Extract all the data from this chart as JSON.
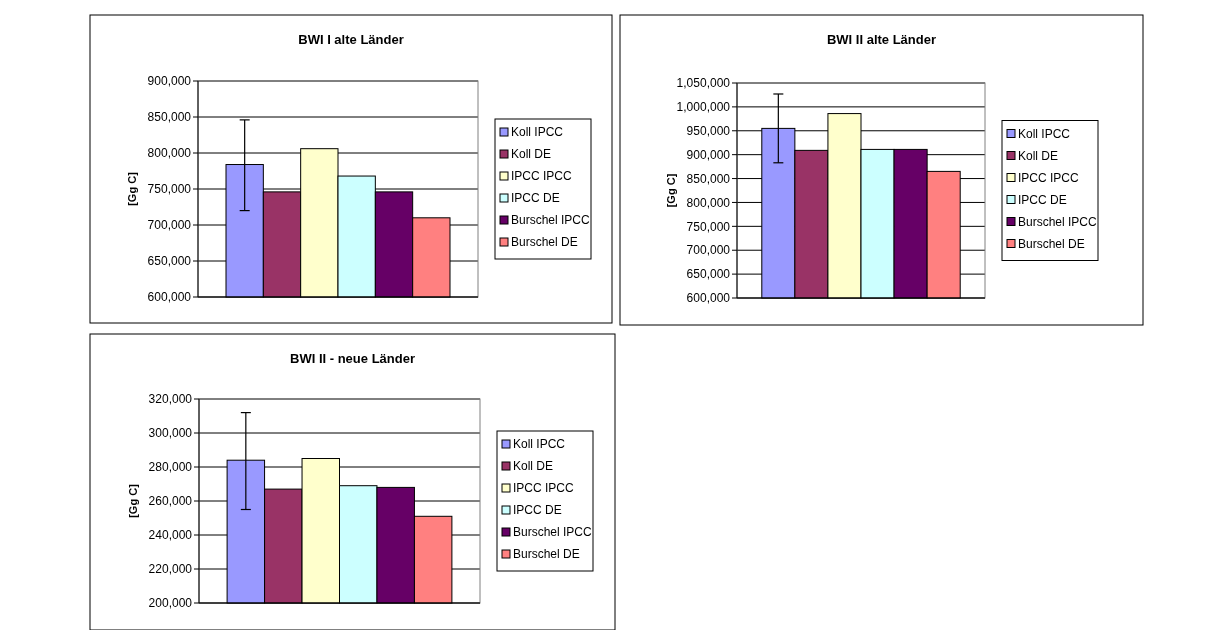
{
  "chart_data": [
    {
      "type": "bar",
      "title": "BWI I alte Länder",
      "ylabel": "[Gg C]",
      "categories": [
        null
      ],
      "ylim": [
        600000,
        900000
      ],
      "yticks": [
        {
          "value": 600000,
          "label": "600,000"
        },
        {
          "value": 650000,
          "label": "650,000"
        },
        {
          "value": 700000,
          "label": "700,000"
        },
        {
          "value": 750000,
          "label": "750,000"
        },
        {
          "value": 800000,
          "label": "800,000"
        },
        {
          "value": 850000,
          "label": "850,000"
        },
        {
          "value": 900000,
          "label": "900,000"
        }
      ],
      "grid": "y",
      "legend": "right",
      "series": [
        {
          "name": "Koll IPCC",
          "color": "#9999ff",
          "values": [
            784000
          ],
          "errors": [
            [
              720000,
              846000
            ]
          ]
        },
        {
          "name": "Koll DE",
          "color": "#993366",
          "values": [
            746000
          ]
        },
        {
          "name": "IPCC IPCC",
          "color": "#ffffcc",
          "values": [
            806000
          ]
        },
        {
          "name": "IPCC DE",
          "color": "#ccffff",
          "values": [
            768000
          ]
        },
        {
          "name": "Burschel IPCC",
          "color": "#660066",
          "values": [
            746000
          ]
        },
        {
          "name": "Burschel DE",
          "color": "#ff8080",
          "values": [
            710000
          ]
        }
      ]
    },
    {
      "type": "bar",
      "title": "BWI II alte Länder",
      "ylabel": "[Gg C]",
      "categories": [
        null
      ],
      "ylim": [
        600000,
        1050000
      ],
      "yticks": [
        {
          "value": 600000,
          "label": "600,000"
        },
        {
          "value": 650000,
          "label": "650,000"
        },
        {
          "value": 700000,
          "label": "700,000"
        },
        {
          "value": 750000,
          "label": "750,000"
        },
        {
          "value": 800000,
          "label": "800,000"
        },
        {
          "value": 850000,
          "label": "850,000"
        },
        {
          "value": 900000,
          "label": "900,000"
        },
        {
          "value": 950000,
          "label": "950,000"
        },
        {
          "value": 1000000,
          "label": "1,000,000"
        },
        {
          "value": 1050000,
          "label": "1,050,000"
        }
      ],
      "grid": "y",
      "legend": "right",
      "series": [
        {
          "name": "Koll IPCC",
          "color": "#9999ff",
          "values": [
            955000
          ],
          "errors": [
            [
              883000,
              1027000
            ]
          ]
        },
        {
          "name": "Koll DE",
          "color": "#993366",
          "values": [
            909000
          ]
        },
        {
          "name": "IPCC IPCC",
          "color": "#ffffcc",
          "values": [
            986000
          ]
        },
        {
          "name": "IPCC DE",
          "color": "#ccffff",
          "values": [
            911000
          ]
        },
        {
          "name": "Burschel IPCC",
          "color": "#660066",
          "values": [
            911000
          ]
        },
        {
          "name": "Burschel DE",
          "color": "#ff8080",
          "values": [
            865000
          ]
        }
      ]
    },
    {
      "type": "bar",
      "title": "BWI II - neue Länder",
      "ylabel": "[Gg C]",
      "categories": [
        null
      ],
      "ylim": [
        200000,
        320000
      ],
      "yticks": [
        {
          "value": 200000,
          "label": "200,000"
        },
        {
          "value": 220000,
          "label": "220,000"
        },
        {
          "value": 240000,
          "label": "240,000"
        },
        {
          "value": 260000,
          "label": "260,000"
        },
        {
          "value": 280000,
          "label": "280,000"
        },
        {
          "value": 300000,
          "label": "300,000"
        },
        {
          "value": 320000,
          "label": "320,000"
        }
      ],
      "grid": "y",
      "legend": "right",
      "series": [
        {
          "name": "Koll IPCC",
          "color": "#9999ff",
          "values": [
            284000
          ],
          "errors": [
            [
              255000,
              312000
            ]
          ]
        },
        {
          "name": "Koll DE",
          "color": "#993366",
          "values": [
            267000
          ]
        },
        {
          "name": "IPCC IPCC",
          "color": "#ffffcc",
          "values": [
            285000
          ]
        },
        {
          "name": "IPCC DE",
          "color": "#ccffff",
          "values": [
            269000
          ]
        },
        {
          "name": "Burschel IPCC",
          "color": "#660066",
          "values": [
            268000
          ]
        },
        {
          "name": "Burschel DE",
          "color": "#ff8080",
          "values": [
            251000
          ]
        }
      ]
    }
  ]
}
